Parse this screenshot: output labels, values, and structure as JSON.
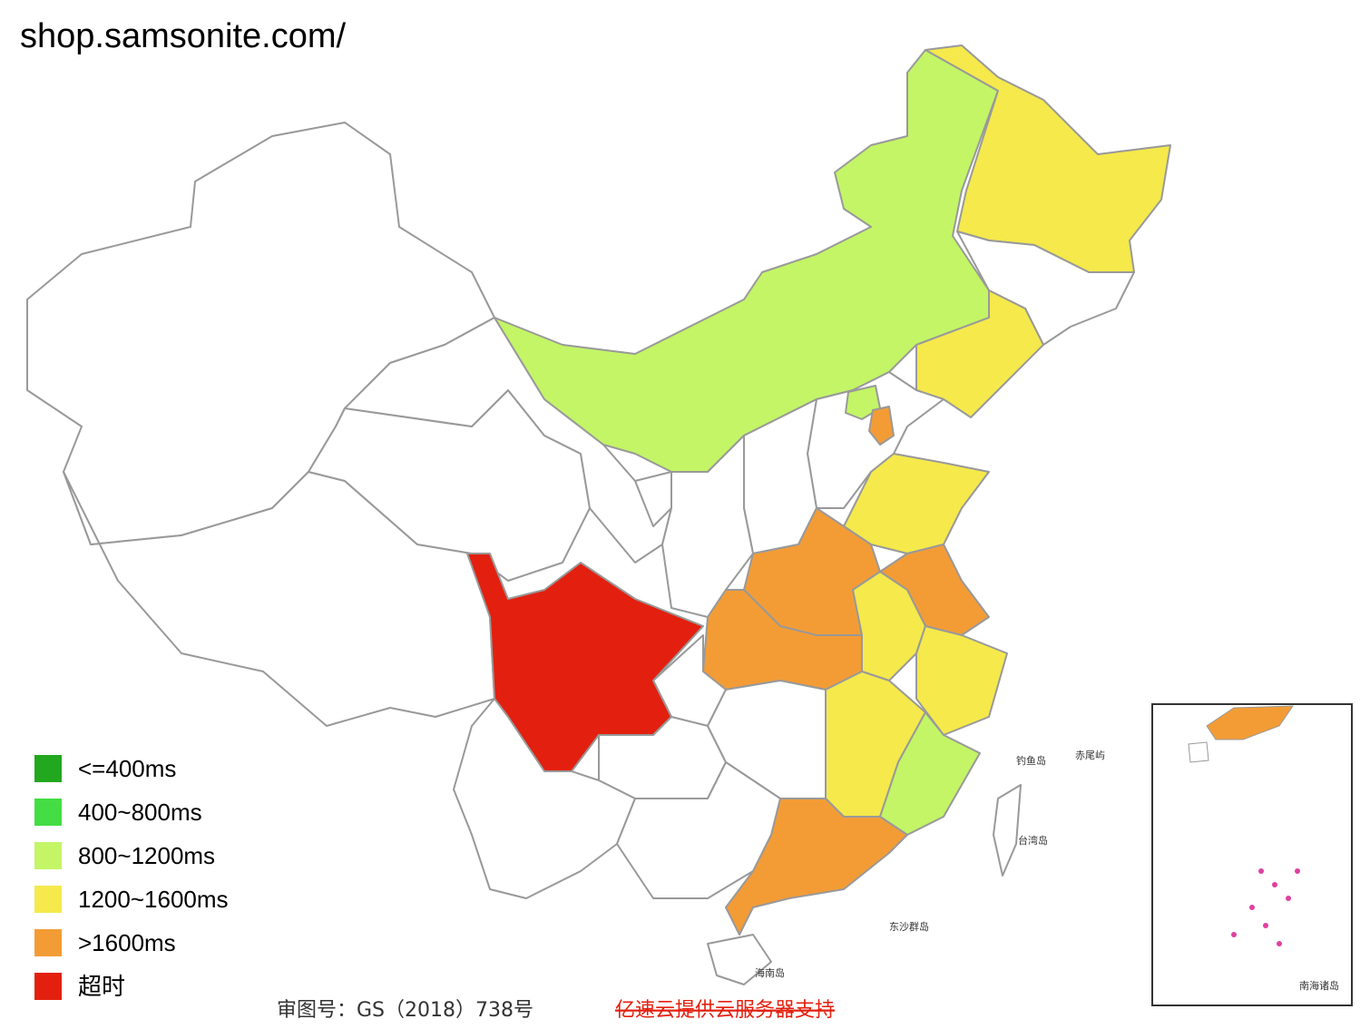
{
  "title": "shop.samsonite.com/",
  "legend": [
    {
      "label": "<=400ms",
      "color": "#22a81e"
    },
    {
      "label": "400~800ms",
      "color": "#44dd44"
    },
    {
      "label": "800~1200ms",
      "color": "#c3f566"
    },
    {
      "label": "1200~1600ms",
      "color": "#f5e94b"
    },
    {
      "label": ">1600ms",
      "color": "#f39c36"
    },
    {
      "label": "超时",
      "color": "#e3200f"
    }
  ],
  "map_labels": [
    "钓鱼岛",
    "赤尾屿",
    "台湾岛",
    "东沙群岛",
    "海南岛",
    "南海诸岛"
  ],
  "footer": {
    "approval": "审图号：GS（2018）738号",
    "sponsor": "亿速云提供云服务器支持"
  }
}
